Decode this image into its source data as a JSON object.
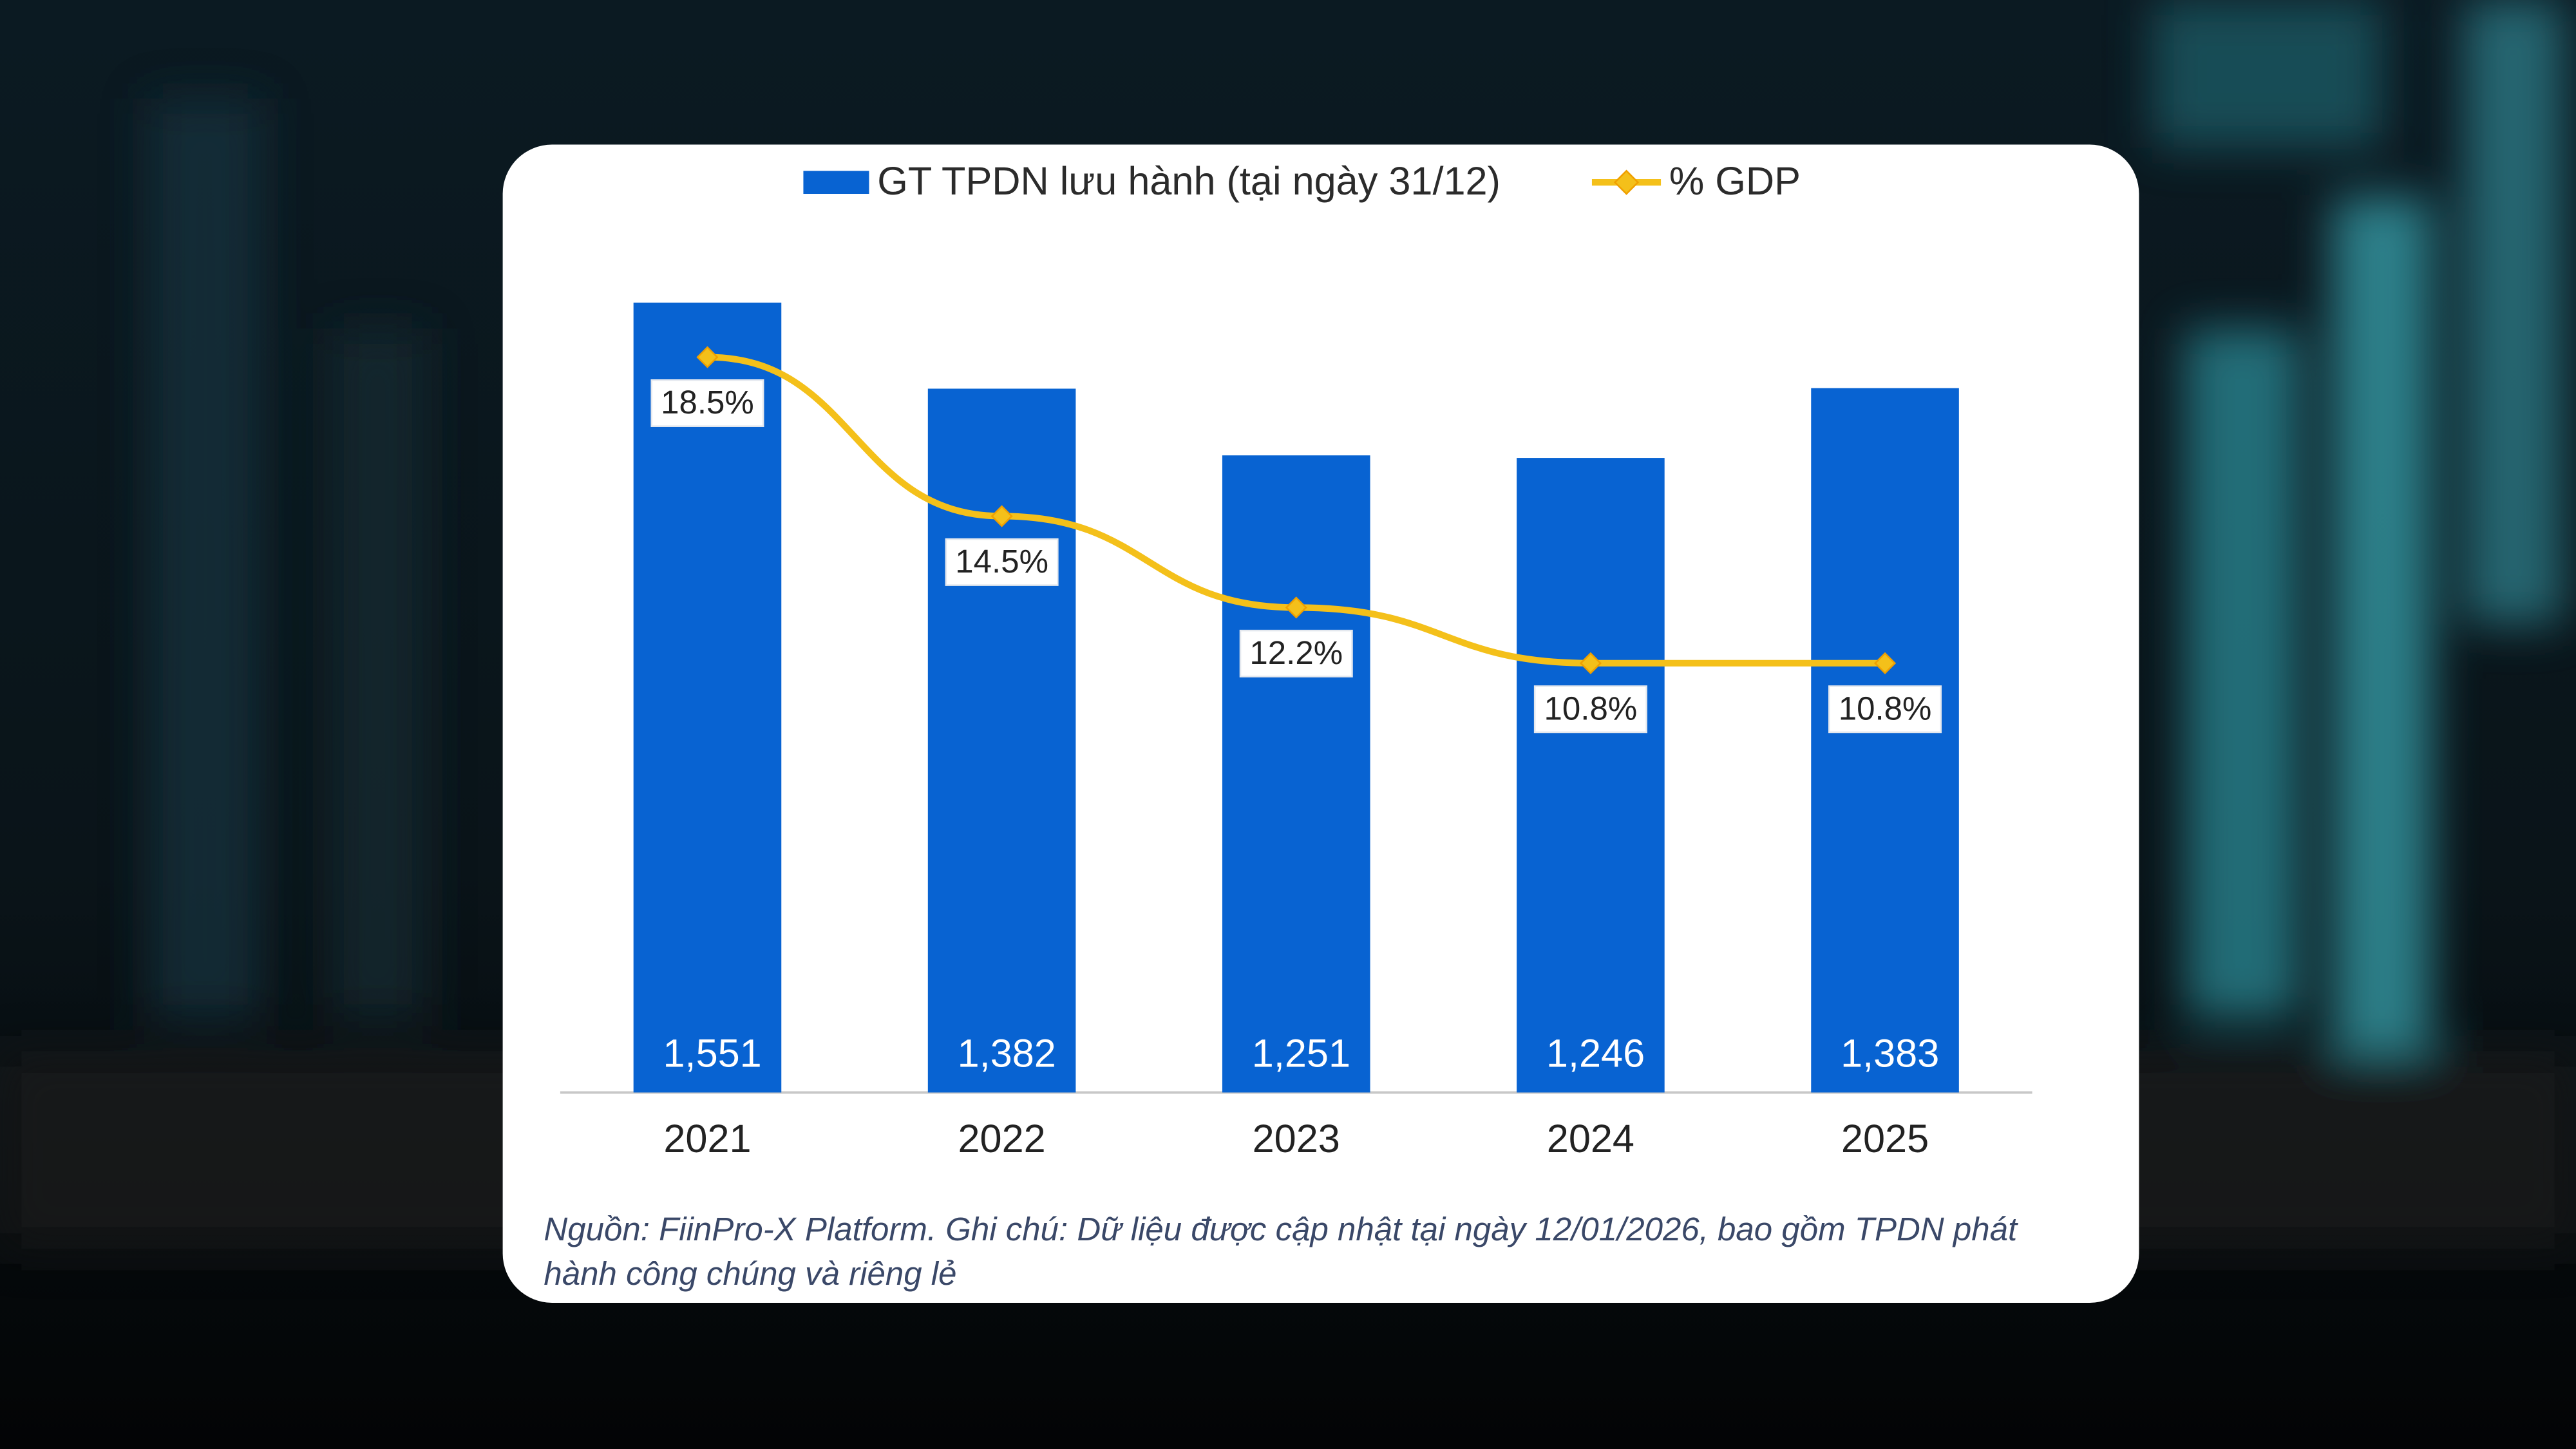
{
  "chart_data": {
    "type": "bar",
    "categories": [
      "2021",
      "2022",
      "2023",
      "2024",
      "2025"
    ],
    "series": [
      {
        "name": "GT TPDN lưu hành (tại ngày 31/12)",
        "type": "bar",
        "color": "#0863d2",
        "values": [
          1551,
          1382,
          1251,
          1246,
          1383
        ],
        "value_labels": [
          "1,551",
          "1,382",
          "1,251",
          "1,246",
          "1,383"
        ]
      },
      {
        "name": "% GDP",
        "type": "line",
        "axis": "y2",
        "color": "#f4c01a",
        "values": [
          18.5,
          14.5,
          12.2,
          10.8,
          10.8
        ],
        "value_labels": [
          "18.5%",
          "14.5%",
          "12.2%",
          "10.8%",
          "10.8%"
        ]
      }
    ],
    "ylim": [
      0,
      1600
    ],
    "y2lim": [
      0,
      20.5
    ],
    "legend": "top",
    "note": "Nguồn: FiinPro-X Platform. Ghi chú: Dữ liệu được cập nhật tại ngày 12/01/2026, bao gồm TPDN phát hành công chúng và riêng lẻ"
  }
}
